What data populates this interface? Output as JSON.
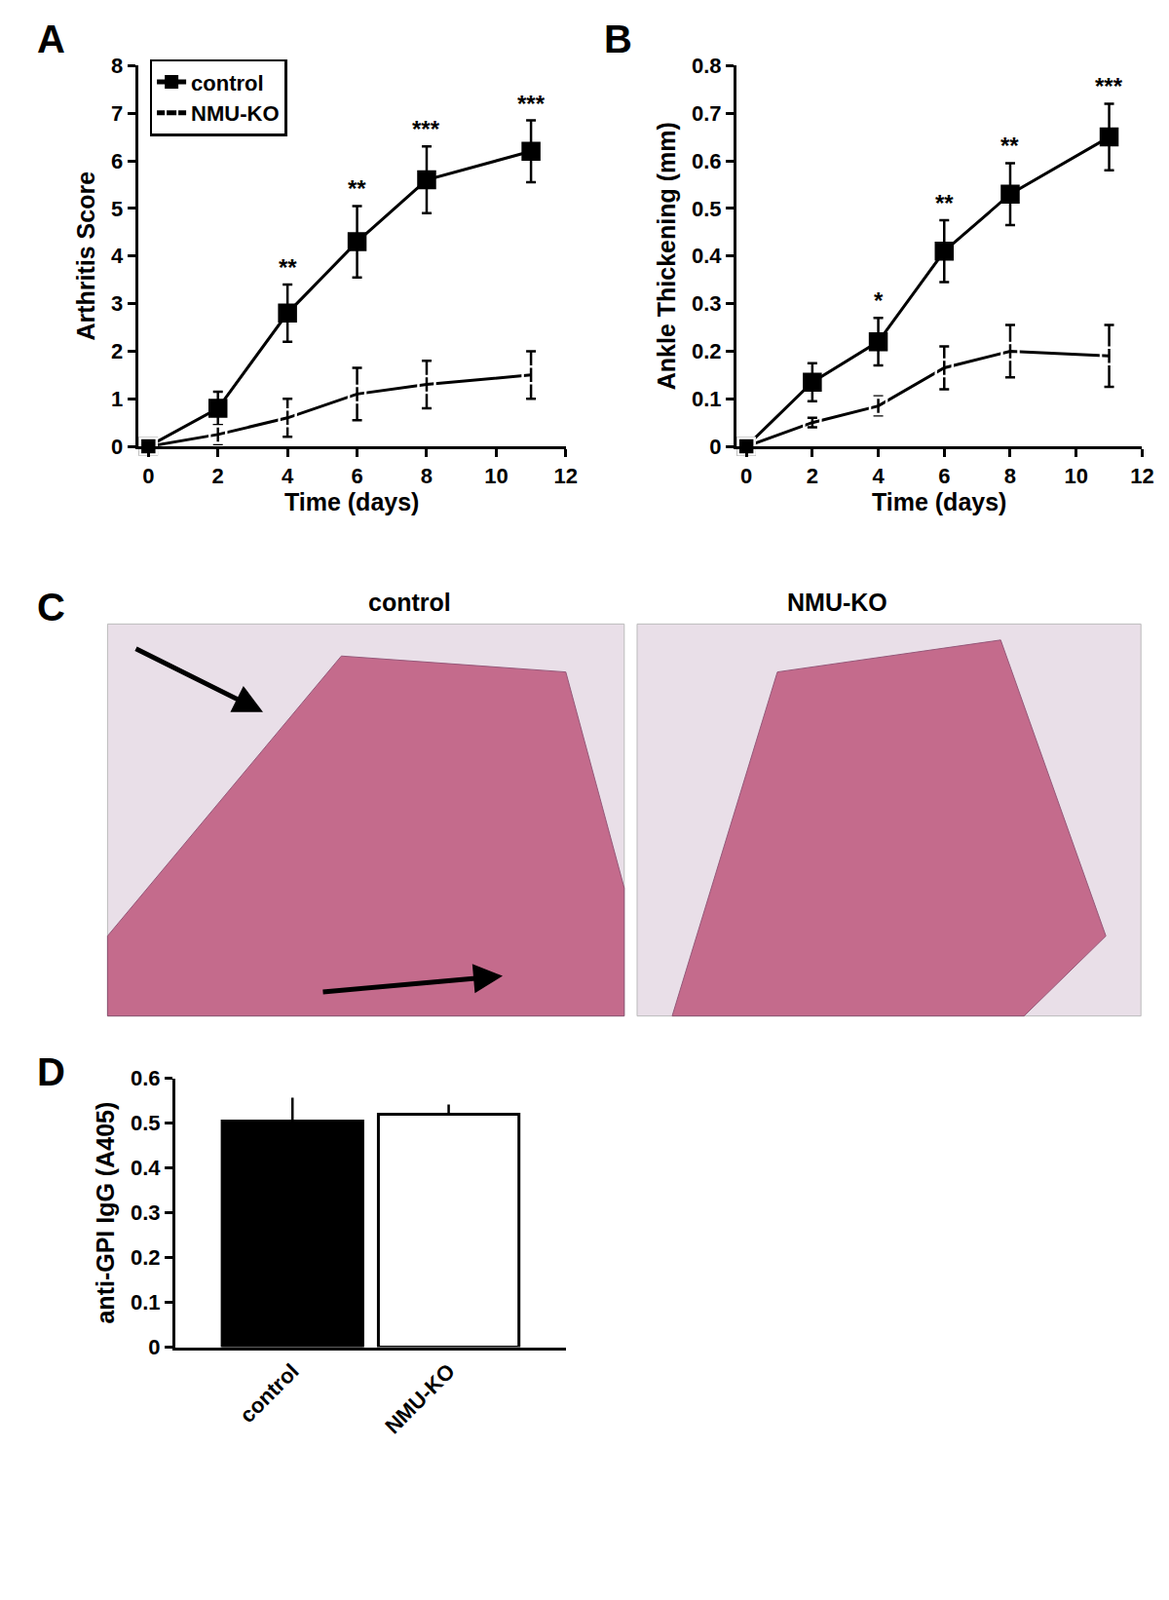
{
  "chart_data": [
    {
      "panel": "A",
      "type": "line",
      "x_label": "Time (days)",
      "y_label": "Arthritis Score",
      "x": [
        0,
        2,
        4,
        6,
        8,
        11
      ],
      "series": [
        {
          "name": "control",
          "color": "#000000",
          "marker": "square",
          "line_style": "solid",
          "values": [
            0,
            0.8,
            2.8,
            4.3,
            5.6,
            6.2
          ],
          "errors": [
            0,
            0.35,
            0.6,
            0.75,
            0.7,
            0.65
          ],
          "significance": [
            null,
            null,
            "**",
            "**",
            "***",
            "***"
          ]
        },
        {
          "name": "NMU-KO",
          "color": "#000000",
          "marker": "square-open",
          "line_style": "solid",
          "values": [
            0,
            0.25,
            0.6,
            1.1,
            1.3,
            1.5
          ],
          "errors": [
            0,
            0.2,
            0.4,
            0.55,
            0.5,
            0.5
          ]
        }
      ],
      "xlim": [
        -0.3,
        12
      ],
      "xticks": [
        0,
        2,
        4,
        6,
        8,
        10,
        12
      ],
      "ylim": [
        0,
        8
      ],
      "yticks": [
        0,
        1,
        2,
        3,
        4,
        5,
        6,
        7,
        8
      ],
      "grid": false,
      "legend": "upper left"
    },
    {
      "panel": "B",
      "type": "line",
      "x_label": "Time (days)",
      "y_label": "Ankle Thickening (mm)",
      "x": [
        0,
        2,
        4,
        6,
        8,
        11
      ],
      "series": [
        {
          "name": "control",
          "color": "#000000",
          "marker": "square",
          "line_style": "solid",
          "values": [
            0,
            0.135,
            0.22,
            0.41,
            0.53,
            0.65
          ],
          "errors": [
            0,
            0.04,
            0.05,
            0.065,
            0.065,
            0.07
          ],
          "significance": [
            null,
            null,
            "*",
            "**",
            "**",
            "***"
          ]
        },
        {
          "name": "NMU-KO",
          "color": "#000000",
          "marker": "square-open",
          "line_style": "solid",
          "values": [
            0,
            0.05,
            0.085,
            0.165,
            0.2,
            0.19
          ],
          "errors": [
            0,
            0.01,
            0.02,
            0.045,
            0.055,
            0.065
          ]
        }
      ],
      "xlim": [
        -0.3,
        12
      ],
      "xticks": [
        0,
        2,
        4,
        6,
        8,
        10,
        12
      ],
      "ylim": [
        0,
        0.8
      ],
      "yticks": [
        0,
        0.1,
        0.2,
        0.3,
        0.4,
        0.5,
        0.6,
        0.7,
        0.8
      ],
      "grid": false
    },
    {
      "panel": "D",
      "type": "bar",
      "y_label": "anti-GPI IgG (A405)",
      "categories": [
        "control",
        "NMU-KO"
      ],
      "values": [
        0.505,
        0.52
      ],
      "errors": [
        0.052,
        0.022
      ],
      "colors": [
        "#000000",
        "#ffffff"
      ],
      "ylim": [
        0,
        0.6
      ],
      "yticks": [
        0,
        0.1,
        0.2,
        0.3,
        0.4,
        0.5,
        0.6
      ],
      "grid": false
    }
  ],
  "histology": {
    "panel": "C",
    "images": [
      "control",
      "NMU-KO"
    ]
  }
}
